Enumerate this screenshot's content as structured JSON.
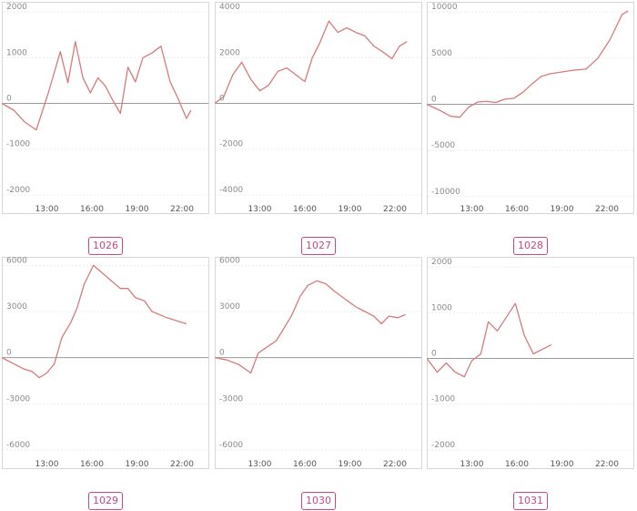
{
  "chart_data": [
    {
      "type": "line",
      "label": "1026",
      "ylim": [
        -2200,
        2100
      ],
      "yticks": [
        2000,
        1000,
        0,
        -1000,
        -2000
      ],
      "xticks": [
        "13:00",
        "16:00",
        "19:00",
        "22:00"
      ],
      "xlim": [
        10.0,
        23.7
      ],
      "color": "#d67a7a",
      "x": [
        10.0,
        10.8,
        11.5,
        12.3,
        13.1,
        13.9,
        14.4,
        14.9,
        15.4,
        15.9,
        16.4,
        16.9,
        17.4,
        17.9,
        18.4,
        18.9,
        19.4,
        20.0,
        20.6,
        21.2,
        21.8,
        22.3,
        22.6
      ],
      "y": [
        0,
        -150,
        -400,
        -580,
        230,
        1130,
        450,
        1350,
        560,
        230,
        560,
        380,
        60,
        -220,
        790,
        470,
        1000,
        1100,
        1250,
        480,
        60,
        -330,
        -150
      ]
    },
    {
      "type": "line",
      "label": "1027",
      "ylim": [
        -4400,
        4200
      ],
      "yticks": [
        4000,
        2000,
        0,
        -2000,
        -4000
      ],
      "xticks": [
        "13:00",
        "16:00",
        "19:00",
        "22:00"
      ],
      "xlim": [
        10.0,
        23.7
      ],
      "color": "#d67a7a",
      "x": [
        10.0,
        10.6,
        11.2,
        11.8,
        12.4,
        13.0,
        13.6,
        14.2,
        14.8,
        15.4,
        16.0,
        16.5,
        17.0,
        17.6,
        18.2,
        18.8,
        19.4,
        20.0,
        20.6,
        21.2,
        21.8,
        22.3,
        22.8
      ],
      "y": [
        0,
        300,
        1250,
        1800,
        1050,
        550,
        800,
        1400,
        1550,
        1250,
        950,
        2000,
        2650,
        3600,
        3100,
        3300,
        3100,
        2950,
        2500,
        2250,
        1950,
        2500,
        2700
      ]
    },
    {
      "type": "line",
      "label": "1028",
      "ylim": [
        -10800,
        10500
      ],
      "yticks": [
        10000,
        5000,
        0,
        -5000,
        -10000
      ],
      "xticks": [
        "13:00",
        "16:00",
        "19:00",
        "22:00"
      ],
      "xlim": [
        10.0,
        23.7
      ],
      "color": "#d67a7a",
      "x": [
        10.0,
        10.8,
        11.6,
        12.2,
        12.8,
        13.4,
        14.0,
        14.6,
        15.2,
        15.8,
        16.4,
        17.0,
        17.6,
        18.2,
        19.0,
        19.8,
        20.6,
        21.4,
        22.2,
        23.0,
        23.4
      ],
      "y": [
        0,
        -600,
        -1300,
        -1400,
        -300,
        250,
        300,
        200,
        550,
        650,
        1300,
        2200,
        3000,
        3300,
        3500,
        3700,
        3800,
        5000,
        7000,
        9700,
        10100
      ]
    },
    {
      "type": "line",
      "label": "1029",
      "ylim": [
        -6600,
        6200
      ],
      "yticks": [
        6000,
        3000,
        0,
        -3000,
        -6000
      ],
      "xticks": [
        "13:00",
        "16:00",
        "19:00",
        "22:00"
      ],
      "xlim": [
        10.0,
        23.7
      ],
      "color": "#d67a7a",
      "x": [
        10.0,
        10.8,
        11.5,
        12.0,
        12.5,
        13.0,
        13.5,
        14.0,
        14.6,
        15.0,
        15.5,
        16.1,
        16.7,
        17.3,
        17.9,
        18.4,
        18.9,
        19.5,
        20.0,
        21.0,
        22.3
      ],
      "y": [
        0,
        -400,
        -750,
        -900,
        -1300,
        -1000,
        -400,
        1300,
        2300,
        3200,
        4800,
        6000,
        5500,
        5000,
        4500,
        4500,
        3900,
        3700,
        3000,
        2600,
        2200
      ]
    },
    {
      "type": "line",
      "label": "1030",
      "ylim": [
        -6600,
        6200
      ],
      "yticks": [
        6000,
        3000,
        0,
        -3000,
        -6000
      ],
      "xticks": [
        "13:00",
        "16:00",
        "19:00",
        "22:00"
      ],
      "xlim": [
        10.0,
        23.7
      ],
      "color": "#d67a7a",
      "x": [
        10.0,
        10.8,
        11.6,
        12.4,
        12.9,
        13.5,
        14.1,
        14.6,
        15.1,
        15.7,
        16.2,
        16.8,
        17.4,
        18.0,
        18.7,
        19.4,
        20.0,
        20.6,
        21.1,
        21.6,
        22.2,
        22.7
      ],
      "y": [
        0,
        -150,
        -450,
        -1000,
        300,
        700,
        1100,
        1900,
        2700,
        4000,
        4700,
        5000,
        4800,
        4300,
        3800,
        3300,
        3000,
        2700,
        2200,
        2700,
        2600,
        2800
      ]
    },
    {
      "type": "line",
      "label": "1031",
      "ylim": [
        -2200,
        2100
      ],
      "yticks": [
        2000,
        1000,
        0,
        -1000,
        -2000
      ],
      "xticks": [
        "13:00",
        "16:00",
        "19:00",
        "22:00"
      ],
      "xlim": [
        10.0,
        23.7
      ],
      "color": "#d67a7a",
      "x": [
        10.0,
        10.7,
        11.3,
        11.9,
        12.5,
        13.0,
        13.6,
        14.1,
        14.7,
        15.3,
        15.9,
        16.5,
        17.1,
        18.3
      ],
      "y": [
        0,
        -300,
        -100,
        -300,
        -400,
        -50,
        100,
        800,
        600,
        900,
        1200,
        500,
        100,
        300
      ]
    }
  ]
}
